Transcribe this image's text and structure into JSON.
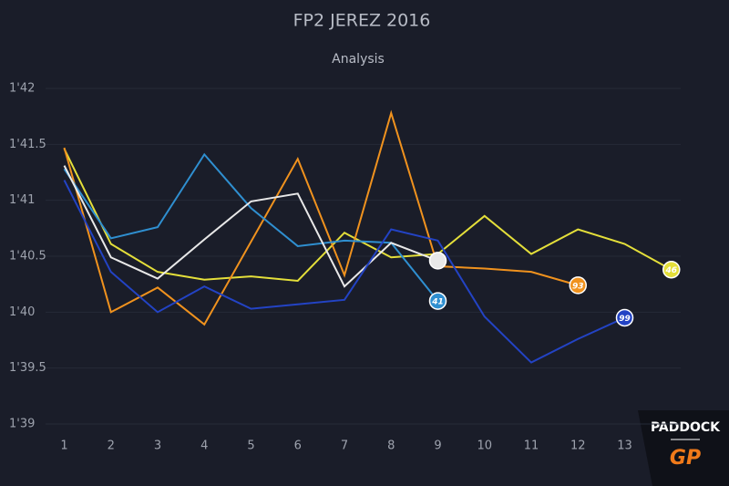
{
  "chart_data": {
    "type": "line",
    "title": "FP2 JEREZ 2016",
    "subtitle": "Analysis",
    "x": [
      1,
      2,
      3,
      4,
      5,
      6,
      7,
      8,
      9,
      10,
      11,
      12,
      13,
      14
    ],
    "xlim": [
      0.6,
      14.2
    ],
    "xticks": [
      1,
      2,
      3,
      4,
      5,
      6,
      7,
      8,
      9,
      10,
      11,
      12,
      13
    ],
    "ylim": [
      99,
      102
    ],
    "yticks": [
      {
        "value": 99,
        "label": "1'39"
      },
      {
        "value": 99.5,
        "label": "1'39.5"
      },
      {
        "value": 100,
        "label": "1'40"
      },
      {
        "value": 100.5,
        "label": "1'40.5"
      },
      {
        "value": 101,
        "label": "1'41"
      },
      {
        "value": 101.5,
        "label": "1'41.5"
      },
      {
        "value": 102,
        "label": "1'42"
      }
    ],
    "grid": true,
    "series": [
      {
        "name": "46",
        "color": "#e4df3a",
        "values": [
          101.46,
          100.61,
          100.36,
          100.29,
          100.32,
          100.28,
          100.71,
          100.49,
          100.52,
          100.86,
          100.52,
          100.74,
          100.61,
          100.38
        ]
      },
      {
        "name": "93",
        "color": "#f0921e",
        "values": [
          101.47,
          100.0,
          100.22,
          99.89,
          100.63,
          101.37,
          100.33,
          101.78,
          100.41,
          100.39,
          100.36,
          100.24,
          null,
          null
        ]
      },
      {
        "name": "41",
        "color": "#2f8fd0",
        "values": [
          101.28,
          100.66,
          100.76,
          101.41,
          100.93,
          100.59,
          100.64,
          100.62,
          100.1,
          null,
          null,
          null,
          null,
          null
        ]
      },
      {
        "color": "#e8e8e8",
        "values": [
          101.31,
          100.49,
          100.3,
          100.65,
          100.99,
          101.06,
          100.23,
          100.62,
          100.46,
          null,
          null,
          null,
          null,
          null
        ]
      },
      {
        "name": "99",
        "color": "#2343c4",
        "values": [
          101.18,
          100.36,
          100.0,
          100.23,
          100.03,
          100.07,
          100.11,
          100.74,
          100.64,
          99.96,
          99.55,
          99.76,
          99.95,
          null
        ]
      }
    ]
  },
  "logo": {
    "line1": "PADDOCK",
    "line2": "GP"
  }
}
